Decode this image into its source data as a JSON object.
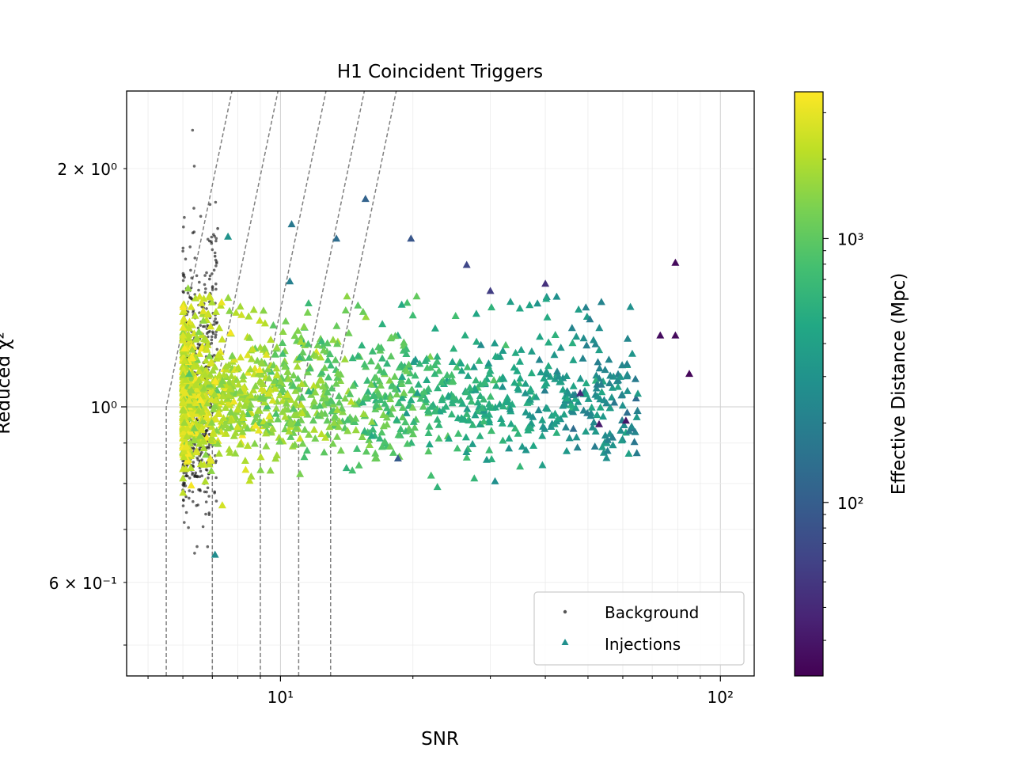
{
  "chart_data": {
    "type": "scatter",
    "title": "H1 Coincident Triggers",
    "xlabel": "SNR",
    "ylabel": "Reduced χ²",
    "xscale": "log",
    "yscale": "log",
    "xlim": [
      4.5,
      120
    ],
    "ylim": [
      0.45,
      2.6
    ],
    "grid": true,
    "legend_position": "lower-right",
    "x_tick_labels": [
      "10¹",
      "10²"
    ],
    "y_tick_labels": [
      "6 × 10⁻¹",
      "10⁰",
      "2 × 10⁰"
    ],
    "colorbar": {
      "label": "Effective Distance (Mpc)",
      "scale": "log",
      "range": [
        22,
        3600
      ],
      "tick_labels": [
        "10²",
        "10³"
      ],
      "colormap": "viridis"
    },
    "series": [
      {
        "name": "Background",
        "marker": "dot",
        "color": "#333333",
        "count": 700,
        "x_range": [
          6.0,
          7.3
        ],
        "y_center": 1.0,
        "points_sample": [
          [
            6.2,
            0.85
          ],
          [
            6.4,
            0.82
          ],
          [
            6.1,
            0.77
          ],
          [
            6.6,
            0.95
          ],
          [
            6.8,
            1.05
          ],
          [
            6.5,
            1.2
          ],
          [
            6.7,
            1.35
          ],
          [
            6.9,
            1.45
          ],
          [
            6.3,
            1.15
          ],
          [
            6.0,
            0.9
          ],
          [
            7.1,
            1.55
          ],
          [
            7.2,
            1.68
          ],
          [
            6.9,
            1.62
          ],
          [
            6.6,
            1.28
          ],
          [
            6.4,
            1.02
          ]
        ]
      },
      {
        "name": "Injections",
        "marker": "triangle",
        "color": "#21908d",
        "count": 1600,
        "colored_by": "effective_distance_mpc",
        "points_sample": [
          [
            79,
            1.52,
            25
          ],
          [
            85,
            1.1,
            24
          ],
          [
            73,
            1.23,
            26
          ],
          [
            79,
            1.23,
            25
          ],
          [
            61,
            0.96,
            30
          ],
          [
            53,
            0.95,
            32
          ],
          [
            40,
            1.43,
            45
          ],
          [
            30,
            1.4,
            55
          ],
          [
            26.5,
            1.51,
            65
          ],
          [
            19.8,
            1.63,
            85
          ],
          [
            15.6,
            1.83,
            110
          ],
          [
            13.4,
            1.63,
            135
          ],
          [
            10.6,
            1.7,
            170
          ],
          [
            7.6,
            1.64,
            300
          ],
          [
            10.5,
            1.44,
            200
          ],
          [
            7.1,
            0.65,
            260
          ],
          [
            18.5,
            0.86,
            95
          ],
          [
            6.3,
            1.18,
            1800
          ],
          [
            6.2,
            1.1,
            900
          ],
          [
            48,
            1.04,
            40
          ]
        ]
      }
    ],
    "reference_lines": {
      "style": "dashed",
      "color": "#808080",
      "thresholds_snr": [
        5.5,
        7.0,
        9.0,
        11.0,
        13.0
      ]
    }
  }
}
